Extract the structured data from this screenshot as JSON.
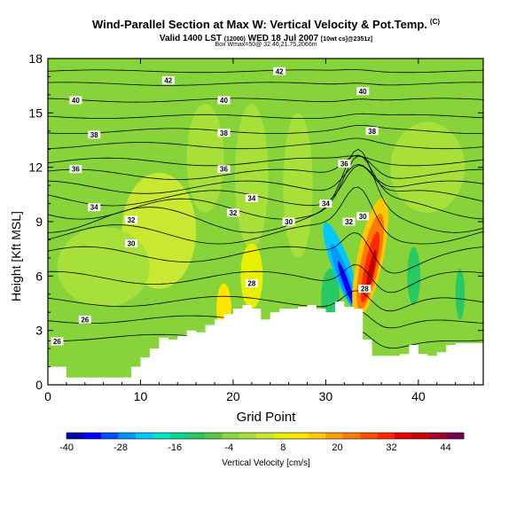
{
  "title": {
    "main": "Wind-Parallel Section at Max W: Vertical Velocity & Pot.Temp.",
    "mark": "(C)",
    "valid": "Valid 1400 LST",
    "valid_small": "(12000)",
    "date": "WED 18 Jul 2007",
    "tail_small": "[10wt cs]@2351z]",
    "location": "Box Wmax=50@ 32.46,21.75,2066m"
  },
  "colors": {
    "background": "#ffffff",
    "field_base": "#86d43a",
    "terrain": "#ffffff"
  },
  "chart_data": {
    "type": "heatmap",
    "xlabel": "Grid Point",
    "ylabel": "Height [Kft MSL]",
    "xlim": [
      0,
      47
    ],
    "ylim": [
      0,
      18
    ],
    "x_ticks": [
      0,
      10,
      20,
      30,
      40
    ],
    "y_ticks": [
      0,
      3,
      6,
      9,
      12,
      15,
      18
    ],
    "colorbar": {
      "label": "Vertical Velocity [cm/s]",
      "range": [
        -40,
        48
      ],
      "tick_values": [
        -40,
        -28,
        -16,
        -4,
        8,
        20,
        32,
        44
      ],
      "colors": [
        "#0000a8",
        "#0000ff",
        "#0050ff",
        "#0096ff",
        "#00c8ff",
        "#00e6c8",
        "#00d88c",
        "#28c864",
        "#5ac846",
        "#8ad83a",
        "#a8e03a",
        "#c8e832",
        "#e6f000",
        "#ffe600",
        "#ffc800",
        "#ffa000",
        "#ff7800",
        "#ff5000",
        "#ff2800",
        "#e60000",
        "#c80000",
        "#a0002a",
        "#780050"
      ]
    },
    "contour_labels": [
      {
        "x": 25,
        "y": 17.3,
        "text": "42"
      },
      {
        "x": 13,
        "y": 16.8,
        "text": "42"
      },
      {
        "x": 3,
        "y": 15.7,
        "text": "40"
      },
      {
        "x": 19,
        "y": 15.7,
        "text": "40"
      },
      {
        "x": 34,
        "y": 16.2,
        "text": "40"
      },
      {
        "x": 5,
        "y": 13.8,
        "text": "38"
      },
      {
        "x": 19,
        "y": 13.9,
        "text": "38"
      },
      {
        "x": 35,
        "y": 14.0,
        "text": "38"
      },
      {
        "x": 3,
        "y": 11.9,
        "text": "36"
      },
      {
        "x": 19,
        "y": 11.9,
        "text": "36"
      },
      {
        "x": 32,
        "y": 12.2,
        "text": "36"
      },
      {
        "x": 22,
        "y": 10.3,
        "text": "34"
      },
      {
        "x": 5,
        "y": 9.8,
        "text": "34"
      },
      {
        "x": 30,
        "y": 10.0,
        "text": "34"
      },
      {
        "x": 20,
        "y": 9.5,
        "text": "32"
      },
      {
        "x": 9,
        "y": 9.1,
        "text": "32"
      },
      {
        "x": 26,
        "y": 9.0,
        "text": "30"
      },
      {
        "x": 32.5,
        "y": 9.0,
        "text": "32"
      },
      {
        "x": 34,
        "y": 9.3,
        "text": "30"
      },
      {
        "x": 9,
        "y": 7.8,
        "text": "30"
      },
      {
        "x": 22,
        "y": 5.6,
        "text": "28"
      },
      {
        "x": 34.2,
        "y": 5.3,
        "text": "28"
      },
      {
        "x": 4,
        "y": 3.6,
        "text": "26"
      },
      {
        "x": 1,
        "y": 2.4,
        "text": "26"
      }
    ],
    "terrain_height": [
      1.0,
      1.0,
      0.4,
      0.4,
      0.4,
      0.4,
      0.4,
      0.4,
      0.4,
      1.0,
      1.5,
      2.0,
      2.6,
      2.5,
      2.7,
      3.0,
      2.9,
      3.3,
      3.6,
      3.9,
      4.2,
      4.4,
      4.2,
      3.6,
      4.0,
      4.2,
      4.2,
      4.3,
      4.4,
      4.2,
      4.0,
      4.6,
      4.3,
      4.2,
      2.5,
      1.6,
      1.6,
      1.6,
      1.7,
      2.2,
      1.7,
      1.6,
      1.8,
      2.2,
      2.3,
      2.3,
      2.3,
      2.3
    ]
  }
}
